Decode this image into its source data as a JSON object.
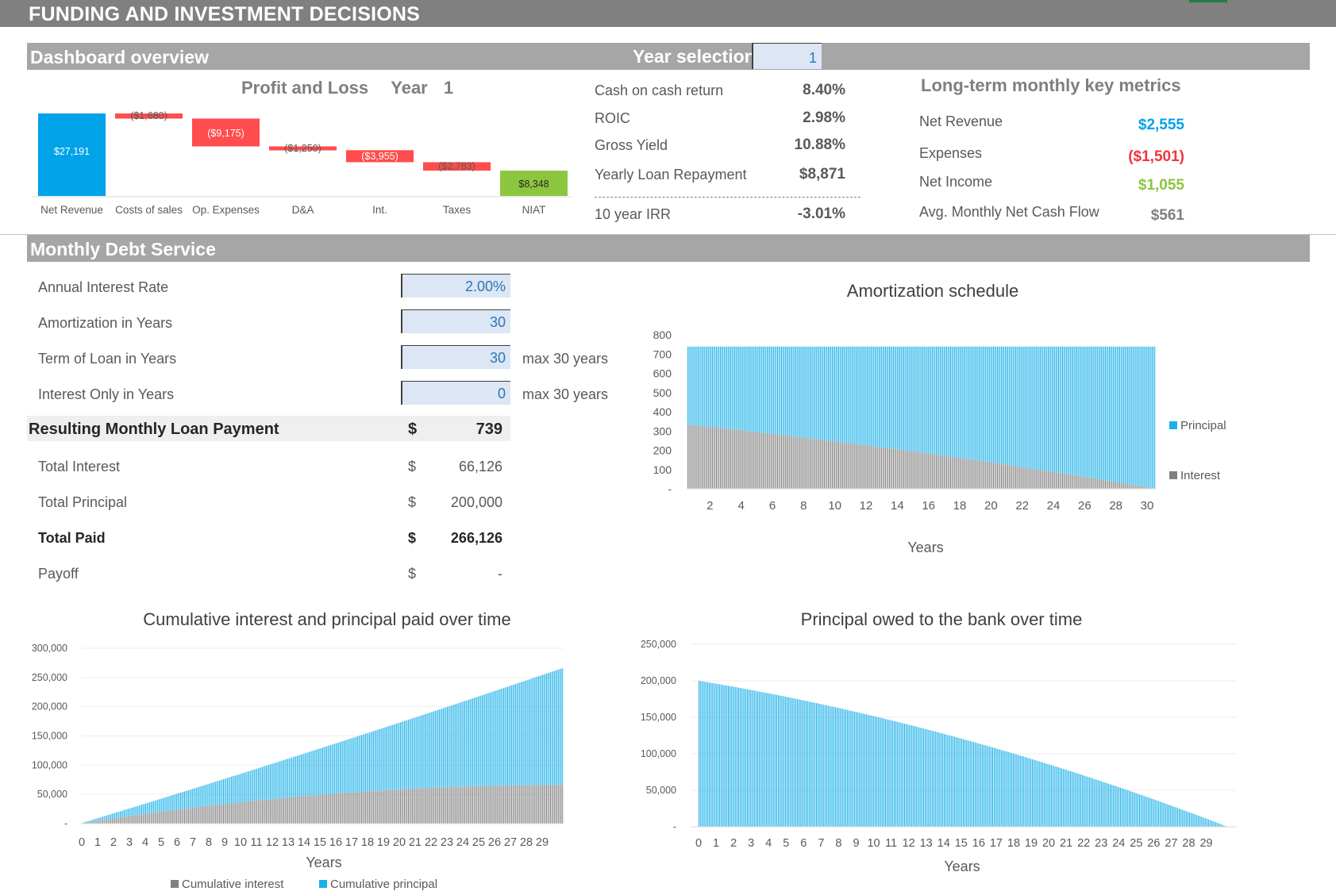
{
  "header": {
    "title": "FUNDING AND INVESTMENT DECISIONS"
  },
  "dashboard": {
    "section_title": "Dashboard overview",
    "year_selection_label": "Year selection",
    "year_selection_value": "1",
    "pl_title": "Profit and Loss",
    "pl_year_label": "Year",
    "pl_year_value": "1"
  },
  "metrics": [
    {
      "label": "Cash on cash return",
      "value": "8.40%"
    },
    {
      "label": "ROIC",
      "value": "2.98%"
    },
    {
      "label": "Gross Yield",
      "value": "10.88%"
    },
    {
      "label": "Yearly Loan Repayment",
      "value": "$8,871"
    },
    {
      "label": "10 year IRR",
      "value": "-3.01%"
    }
  ],
  "longterm": {
    "title": "Long-term monthly key metrics",
    "items": [
      {
        "label": "Net Revenue",
        "value": "$2,555",
        "color": "#00a2e8"
      },
      {
        "label": "Expenses",
        "value": "($1,501)",
        "color": "#f0343c"
      },
      {
        "label": "Net Income",
        "value": "$1,055",
        "color": "#8cc63f"
      },
      {
        "label": "Avg. Monthly Net Cash Flow",
        "value": "$561",
        "color": "#7f7f7f"
      }
    ]
  },
  "debt": {
    "section_title": "Monthly Debt Service",
    "inputs": [
      {
        "label": "Annual Interest Rate",
        "value": "2.00%",
        "note": ""
      },
      {
        "label": "Amortization in Years",
        "value": "30",
        "note": ""
      },
      {
        "label": "Term of Loan in Years",
        "value": "30",
        "note": "max 30 years"
      },
      {
        "label": "Interest Only in Years",
        "value": "0",
        "note": "max 30 years"
      }
    ],
    "result": {
      "label": "Resulting Monthly Loan Payment",
      "currency": "$",
      "value": "739"
    },
    "totals": [
      {
        "label": "Total Interest",
        "currency": "$",
        "value": "66,126",
        "bold": false
      },
      {
        "label": "Total Principal",
        "currency": "$",
        "value": "200,000",
        "bold": false
      },
      {
        "label": "Total Paid",
        "currency": "$",
        "value": "266,126",
        "bold": true
      },
      {
        "label": "Payoff",
        "currency": "$",
        "value": "-",
        "bold": false
      }
    ]
  },
  "chart_data": [
    {
      "type": "bar",
      "subtype": "waterfall",
      "title": "Profit and Loss Year 1",
      "categories": [
        "Net Revenue",
        "Costs of sales",
        "Op. Expenses",
        "D&A",
        "Int.",
        "Taxes",
        "NIAT"
      ],
      "values": [
        27191,
        -1680,
        -9175,
        -1250,
        -3955,
        -2783,
        8348
      ],
      "data_labels": [
        "$27,191",
        "($1,680)",
        "($9,175)",
        "($1,250)",
        "($3,955)",
        "($2,783)",
        "$8,348"
      ],
      "colors": {
        "total": "#00a2e8",
        "negative": "#ff4c4c",
        "result": "#8cc63f"
      }
    },
    {
      "type": "bar",
      "subtype": "stacked",
      "title": "Amortization schedule",
      "xlabel": "Years",
      "ylim": [
        0,
        800
      ],
      "y_ticks": [
        "-",
        "100",
        "200",
        "300",
        "400",
        "500",
        "600",
        "700",
        "800"
      ],
      "x_ticks": [
        "2",
        "4",
        "6",
        "8",
        "10",
        "12",
        "14",
        "16",
        "18",
        "20",
        "22",
        "24",
        "26",
        "28",
        "30"
      ],
      "monthly_payment": 739,
      "interest_start": 333,
      "interest_end": 1,
      "periods": 360,
      "series": [
        {
          "name": "Principal",
          "color": "#1ab0e8"
        },
        {
          "name": "Interest",
          "color": "#808080"
        }
      ]
    },
    {
      "type": "area",
      "subtype": "stacked-bars",
      "title": "Cumulative interest and principal paid over time",
      "xlabel": "Years",
      "ylim": [
        0,
        300000
      ],
      "y_ticks": [
        "-",
        "50,000",
        "100,000",
        "150,000",
        "200,000",
        "250,000",
        "300,000"
      ],
      "x_ticks": [
        "0",
        "1",
        "2",
        "3",
        "4",
        "5",
        "6",
        "7",
        "8",
        "9",
        "10",
        "11",
        "12",
        "13",
        "14",
        "15",
        "16",
        "17",
        "18",
        "19",
        "20",
        "21",
        "22",
        "23",
        "24",
        "25",
        "26",
        "27",
        "28",
        "29"
      ],
      "final_interest": 66126,
      "final_principal": 200000,
      "periods": 360,
      "series": [
        {
          "name": "Cumulative interest",
          "color": "#808080"
        },
        {
          "name": "Cumulative principal",
          "color": "#1ab0e8"
        }
      ]
    },
    {
      "type": "bar",
      "title": "Principal owed to the bank over time",
      "xlabel": "Years",
      "ylim": [
        0,
        250000
      ],
      "y_ticks": [
        "-",
        "50,000",
        "100,000",
        "150,000",
        "200,000",
        "250,000"
      ],
      "x_ticks": [
        "0",
        "1",
        "2",
        "3",
        "4",
        "5",
        "6",
        "7",
        "8",
        "9",
        "10",
        "11",
        "12",
        "13",
        "14",
        "15",
        "16",
        "17",
        "18",
        "19",
        "20",
        "21",
        "22",
        "23",
        "24",
        "25",
        "26",
        "27",
        "28",
        "29"
      ],
      "start_principal": 200000,
      "periods": 360,
      "series": [
        {
          "name": "Principal owed",
          "color": "#1ab0e8"
        }
      ]
    }
  ]
}
